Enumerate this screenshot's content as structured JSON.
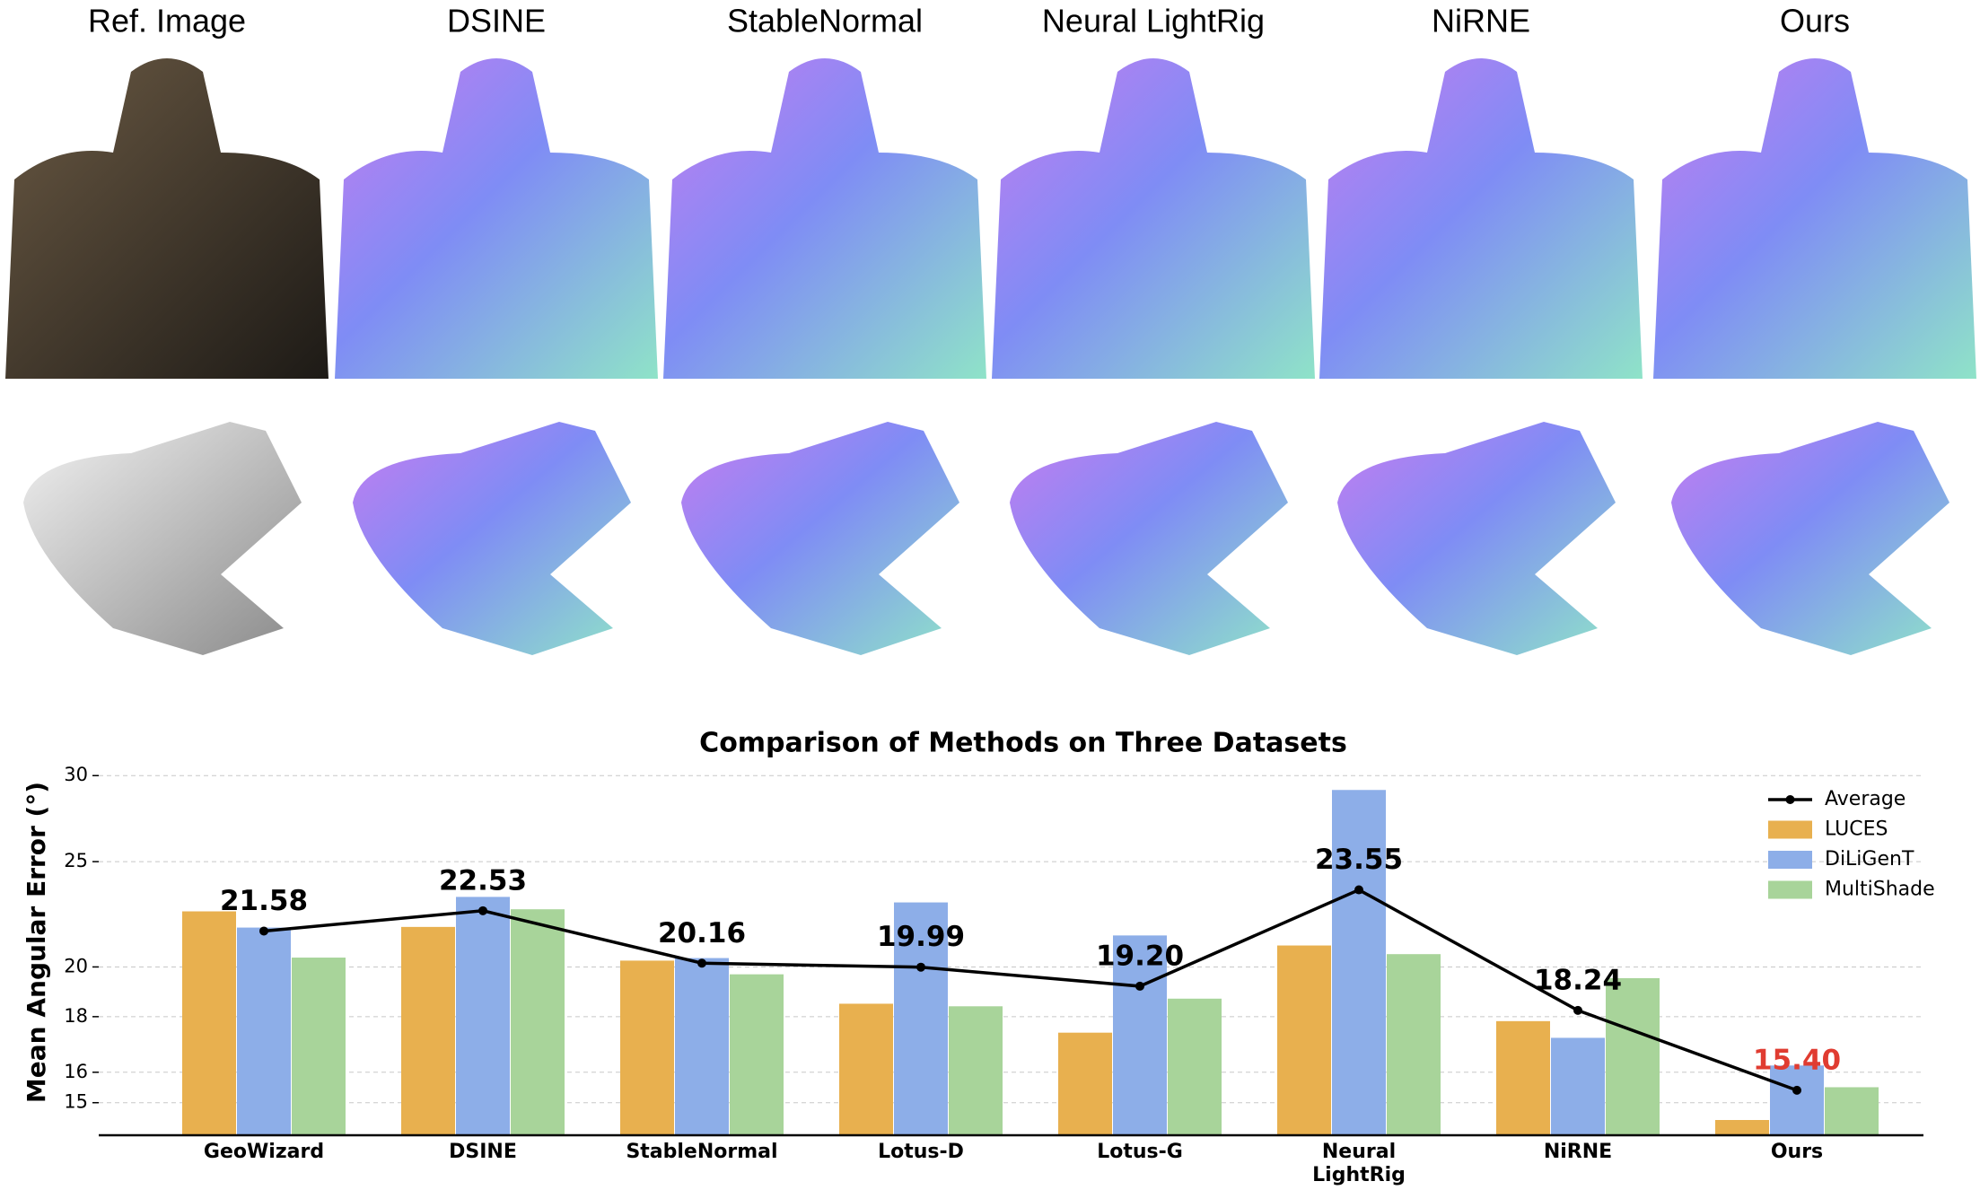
{
  "figure": {
    "column_titles": [
      "Ref. Image",
      "DSINE",
      "StableNormal",
      "Neural LightRig",
      "NiRNE",
      "Ours"
    ]
  },
  "chart_data": {
    "type": "bar",
    "title": "Comparison of Methods on Three Datasets",
    "y_label": "Mean Angular Error (°)",
    "categories": [
      "GeoWizard",
      "DSINE",
      "StableNormal",
      "Lotus-D",
      "Lotus-G",
      "Neural\nLightRig",
      "NiRNE",
      "Ours"
    ],
    "series": [
      {
        "name": "Average",
        "type": "line",
        "color": "#000000",
        "values": [
          21.58,
          22.53,
          20.16,
          19.99,
          19.2,
          23.55,
          18.24,
          15.4
        ],
        "value_labels": [
          "21.58",
          "22.53",
          "20.16",
          "19.99",
          "19.20",
          "23.55",
          "18.24",
          "15.40"
        ],
        "highlight_index": 7,
        "highlight_color": "#e03c31"
      },
      {
        "name": "LUCES",
        "color": "#e8b04f",
        "values": [
          22.5,
          21.77,
          20.27,
          18.5,
          17.4,
          20.93,
          17.83,
          14.46
        ]
      },
      {
        "name": "DiLiGenT",
        "color": "#8daee8",
        "values": [
          21.74,
          23.2,
          20.38,
          22.93,
          21.38,
          29.1,
          17.21,
          16.23
        ]
      },
      {
        "name": "MultiShade",
        "color": "#a8d49a",
        "values": [
          20.4,
          22.6,
          19.69,
          18.4,
          18.7,
          20.55,
          19.53,
          15.5
        ]
      }
    ],
    "ylim": [
      14,
      31
    ],
    "yticks": [
      15,
      16,
      18,
      20,
      25,
      30
    ],
    "log_scale": true,
    "grid": true,
    "legend": "upper right"
  }
}
